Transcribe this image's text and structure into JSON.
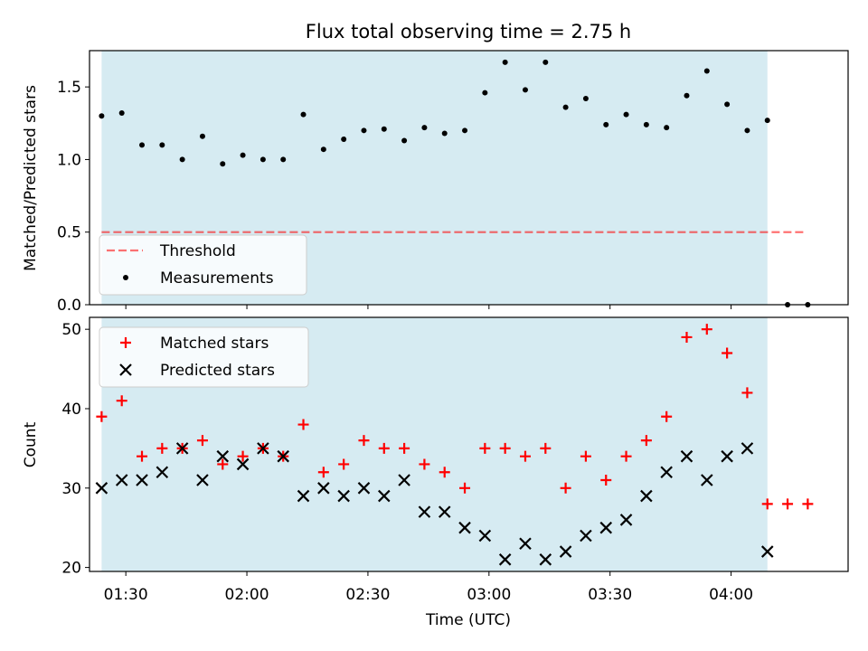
{
  "chart_data": {
    "title": "Flux total observing time = 2.75 h",
    "xlabel": "Time (UTC)",
    "x_ticks": [
      "01:30",
      "02:00",
      "02:30",
      "03:00",
      "03:30",
      "04:00"
    ],
    "x_range": [
      "01:21",
      "04:29"
    ],
    "shaded_interval": [
      "01:24",
      "04:09"
    ],
    "colors": {
      "shade": "#add8e6",
      "threshold": "#ff0000",
      "matched": "#ff0000",
      "predicted": "#000000",
      "measurements": "#000000"
    },
    "panels": [
      {
        "type": "scatter",
        "ylabel": "Matched/Predicted stars",
        "ylim": [
          0,
          1.75
        ],
        "y_ticks": [
          "0.0",
          "0.5",
          "1.0",
          "1.5"
        ],
        "legend": {
          "location": "lower-left",
          "entries": [
            "Threshold",
            "Measurements"
          ]
        },
        "series": [
          {
            "name": "Threshold",
            "style": "dashed-line",
            "x": [
              "01:24",
              "04:18"
            ],
            "values": [
              0.5,
              0.5
            ]
          },
          {
            "name": "Measurements",
            "style": "dot",
            "x": [
              "01:24",
              "01:29",
              "01:34",
              "01:39",
              "01:44",
              "01:49",
              "01:54",
              "01:59",
              "02:04",
              "02:09",
              "02:14",
              "02:19",
              "02:24",
              "02:29",
              "02:34",
              "02:39",
              "02:44",
              "02:49",
              "02:54",
              "02:59",
              "03:04",
              "03:09",
              "03:14",
              "03:19",
              "03:24",
              "03:29",
              "03:34",
              "03:39",
              "03:44",
              "03:49",
              "03:54",
              "03:59",
              "04:04",
              "04:09",
              "04:14",
              "04:19"
            ],
            "values": [
              1.3,
              1.32,
              1.1,
              1.1,
              1.0,
              1.16,
              0.97,
              1.03,
              1.0,
              1.0,
              1.31,
              1.07,
              1.14,
              1.2,
              1.21,
              1.13,
              1.22,
              1.18,
              1.2,
              1.46,
              1.67,
              1.48,
              1.67,
              1.36,
              1.42,
              1.24,
              1.31,
              1.24,
              1.22,
              1.44,
              1.61,
              1.38,
              1.2,
              1.27,
              0.0,
              0.0
            ]
          }
        ]
      },
      {
        "type": "scatter",
        "ylabel": "Count",
        "ylim": [
          19.5,
          51.5
        ],
        "y_ticks": [
          "20",
          "30",
          "40",
          "50"
        ],
        "legend": {
          "location": "upper-left",
          "entries": [
            "Matched stars",
            "Predicted stars"
          ]
        },
        "series": [
          {
            "name": "Matched stars",
            "marker": "plus",
            "x": [
              "01:24",
              "01:29",
              "01:34",
              "01:39",
              "01:44",
              "01:49",
              "01:54",
              "01:59",
              "02:04",
              "02:09",
              "02:14",
              "02:19",
              "02:24",
              "02:29",
              "02:34",
              "02:39",
              "02:44",
              "02:49",
              "02:54",
              "02:59",
              "03:04",
              "03:09",
              "03:14",
              "03:19",
              "03:24",
              "03:29",
              "03:34",
              "03:39",
              "03:44",
              "03:49",
              "03:54",
              "03:59",
              "04:04",
              "04:09",
              "04:14",
              "04:19"
            ],
            "values": [
              39,
              41,
              34,
              35,
              35,
              36,
              33,
              34,
              35,
              34,
              38,
              32,
              33,
              36,
              35,
              35,
              33,
              32,
              30,
              35,
              35,
              34,
              35,
              30,
              34,
              31,
              34,
              36,
              39,
              49,
              50,
              47,
              42,
              28,
              28,
              28
            ]
          },
          {
            "name": "Predicted stars",
            "marker": "cross",
            "x": [
              "01:24",
              "01:29",
              "01:34",
              "01:39",
              "01:44",
              "01:49",
              "01:54",
              "01:59",
              "02:04",
              "02:09",
              "02:14",
              "02:19",
              "02:24",
              "02:29",
              "02:34",
              "02:39",
              "02:44",
              "02:49",
              "02:54",
              "02:59",
              "03:04",
              "03:09",
              "03:14",
              "03:19",
              "03:24",
              "03:29",
              "03:34",
              "03:39",
              "03:44",
              "03:49",
              "03:54",
              "03:59",
              "04:04",
              "04:09"
            ],
            "values": [
              30,
              31,
              31,
              32,
              35,
              31,
              34,
              33,
              35,
              34,
              29,
              30,
              29,
              30,
              29,
              31,
              27,
              27,
              25,
              24,
              21,
              23,
              21,
              22,
              24,
              25,
              26,
              29,
              32,
              34,
              31,
              34,
              35,
              22
            ]
          }
        ]
      }
    ]
  }
}
